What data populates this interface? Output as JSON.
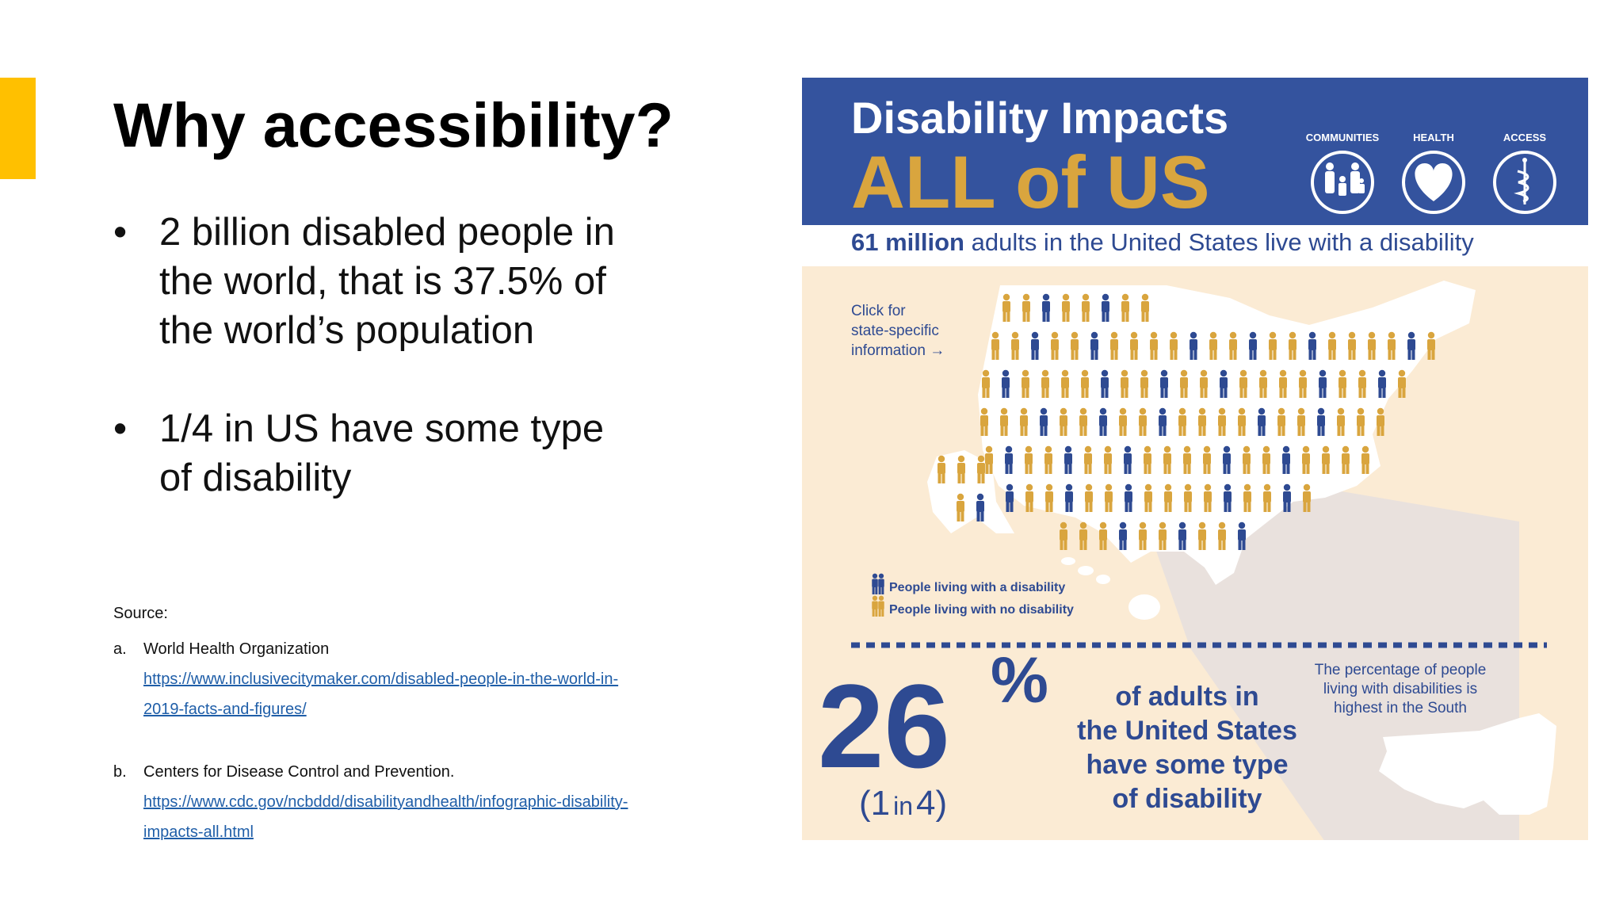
{
  "slide": {
    "title": "Why accessibility?",
    "bullets": [
      {
        "line1": "2 billion disabled people in",
        "line2": "the world, that is 37.5% of",
        "line3": "the world’s population"
      },
      {
        "line1": "1/4 in US have some type",
        "line2": "of disability"
      }
    ],
    "source_label": "Source:",
    "sources": [
      {
        "letter": "a.",
        "name": "World Health Organization",
        "link1": "https://www.inclusivecitymaker.com/disabled-people-in-the-world-in-",
        "link2": "2019-facts-and-figures/"
      },
      {
        "letter": "b.",
        "name": "Centers for Disease Control and Prevention.",
        "link1": "https://www.cdc.gov/ncbddd/disabilityandhealth/infographic-disability-",
        "link2": "impacts-all.html"
      }
    ],
    "accent_color": "#FFC000"
  },
  "infographic": {
    "title1": "Disability Impacts",
    "title2": "ALL of US",
    "icons": [
      {
        "label": "COMMUNITIES",
        "icon": "family-icon"
      },
      {
        "label": "HEALTH",
        "icon": "heart-icon"
      },
      {
        "label": "ACCESS",
        "icon": "caduceus-icon"
      }
    ],
    "subtitle_bold": "61 million",
    "subtitle_rest": " adults in the United States live with a disability",
    "click_line1": "Click for",
    "click_line2": "state-specific",
    "click_line3": "information →",
    "legend_with": "People living with a disability",
    "legend_without": "People living with no disability",
    "big_number": "26",
    "percent_sign": "%",
    "ratio_1": "(1",
    "ratio_in": "in",
    "ratio_4": "4)",
    "stat_line1": "of adults in",
    "stat_line2": "the United States",
    "stat_line3": "have some type",
    "stat_line4": "of disability",
    "south_line1": "The percentage of people",
    "south_line2": "living with disabilities is",
    "south_line3": "highest in the South",
    "colors": {
      "navy": "#2E4A92",
      "gold": "#D9A53E",
      "cream": "#FBEBD4",
      "banner": "#34539E"
    }
  }
}
